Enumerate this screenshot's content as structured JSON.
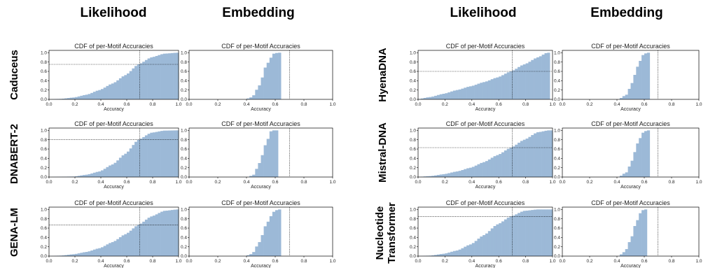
{
  "column_titles": [
    "Likelihood",
    "Embedding",
    "Likelihood",
    "Embedding"
  ],
  "row_labels": {
    "caduceus": "Caduceus",
    "dnabert2": "DNABERT-2",
    "genalm": "GENA-LM",
    "hyenadna": "HyenaDNA",
    "mistraldna": "Mistral-DNA",
    "nt_line1": "Nucleotide",
    "nt_line2": "Transformer"
  },
  "colors": {
    "bars": "#9cb9d7",
    "axis": "#000000"
  },
  "chart_data": [
    {
      "id": "caduceus-likelihood",
      "type": "bar",
      "title": "CDF of per-Motif Accuracies",
      "xlabel": "Accuracy",
      "xlim": [
        0,
        1
      ],
      "ylim": [
        0,
        1.05
      ],
      "xticks": [
        "0.0",
        "0.2",
        "0.4",
        "0.6",
        "0.8",
        "1.0"
      ],
      "yticks": [
        "0.0",
        "0.2",
        "0.4",
        "0.6",
        "0.8",
        "1.0"
      ],
      "threshold_x": 0.7,
      "threshold_y": 0.75,
      "cdf_knots": [
        [
          0,
          0
        ],
        [
          0.1,
          0.01
        ],
        [
          0.2,
          0.04
        ],
        [
          0.3,
          0.1
        ],
        [
          0.4,
          0.2
        ],
        [
          0.5,
          0.34
        ],
        [
          0.6,
          0.52
        ],
        [
          0.7,
          0.75
        ],
        [
          0.8,
          0.9
        ],
        [
          0.9,
          0.98
        ],
        [
          1.0,
          1.0
        ]
      ]
    },
    {
      "id": "caduceus-embedding",
      "type": "bar",
      "title": "CDF of per-Motif Accuracies",
      "xlabel": "Accuracy",
      "xlim": [
        0,
        1
      ],
      "ylim": [
        0,
        1.05
      ],
      "xticks": [
        "0.0",
        "0.2",
        "0.4",
        "0.6",
        "0.8",
        "1.0"
      ],
      "yticks": [
        "0.0",
        "0.2",
        "0.4",
        "0.6",
        "0.8",
        "1.0"
      ],
      "threshold_x": 0.7,
      "threshold_y": null,
      "cdf_knots": [
        [
          0.4,
          0
        ],
        [
          0.45,
          0.05
        ],
        [
          0.5,
          0.3
        ],
        [
          0.55,
          0.75
        ],
        [
          0.6,
          0.98
        ],
        [
          0.63,
          1.0
        ]
      ]
    },
    {
      "id": "hyenadna-likelihood",
      "type": "bar",
      "title": "CDF of per-Motif Accuracies",
      "xlabel": "Accuracy",
      "xlim": [
        0,
        1
      ],
      "ylim": [
        0,
        1.05
      ],
      "xticks": [
        "0.0",
        "0.2",
        "0.4",
        "0.6",
        "0.8",
        "1.0"
      ],
      "yticks": [
        "0.0",
        "0.2",
        "0.4",
        "0.6",
        "0.8",
        "1.0"
      ],
      "threshold_x": 0.7,
      "threshold_y": 0.6,
      "cdf_knots": [
        [
          0,
          0
        ],
        [
          0.1,
          0.05
        ],
        [
          0.2,
          0.12
        ],
        [
          0.3,
          0.2
        ],
        [
          0.4,
          0.28
        ],
        [
          0.5,
          0.37
        ],
        [
          0.6,
          0.47
        ],
        [
          0.7,
          0.6
        ],
        [
          0.8,
          0.75
        ],
        [
          0.9,
          0.9
        ],
        [
          0.97,
          1.0
        ]
      ]
    },
    {
      "id": "hyenadna-embedding",
      "type": "bar",
      "title": "CDF of per-Motif Accuracies",
      "xlabel": "Accuracy",
      "xlim": [
        0,
        1
      ],
      "ylim": [
        0,
        1.05
      ],
      "xticks": [
        "0.0",
        "0.2",
        "0.4",
        "0.6",
        "0.8",
        "1.0"
      ],
      "yticks": [
        "0.0",
        "0.2",
        "0.4",
        "0.6",
        "0.8",
        "1.0"
      ],
      "threshold_x": 0.7,
      "threshold_y": null,
      "cdf_knots": [
        [
          0.42,
          0
        ],
        [
          0.48,
          0.1
        ],
        [
          0.52,
          0.35
        ],
        [
          0.56,
          0.7
        ],
        [
          0.6,
          0.95
        ],
        [
          0.63,
          1.0
        ]
      ]
    },
    {
      "id": "dnabert2-likelihood",
      "type": "bar",
      "title": "CDF of per-Motif Accuracies",
      "xlabel": "Accuracy",
      "xlim": [
        0,
        1
      ],
      "ylim": [
        0,
        1.05
      ],
      "xticks": [
        "0.0",
        "0.2",
        "0.4",
        "0.6",
        "0.8",
        "1.0"
      ],
      "yticks": [
        "0.0",
        "0.2",
        "0.4",
        "0.6",
        "0.8",
        "1.0"
      ],
      "threshold_x": 0.7,
      "threshold_y": 0.8,
      "cdf_knots": [
        [
          0,
          0
        ],
        [
          0.2,
          0.01
        ],
        [
          0.3,
          0.05
        ],
        [
          0.4,
          0.12
        ],
        [
          0.5,
          0.27
        ],
        [
          0.6,
          0.5
        ],
        [
          0.7,
          0.8
        ],
        [
          0.8,
          0.95
        ],
        [
          0.9,
          0.995
        ],
        [
          1.0,
          1.0
        ]
      ]
    },
    {
      "id": "dnabert2-embedding",
      "type": "bar",
      "title": "CDF of per-Motif Accuracies",
      "xlabel": "Accuracy",
      "xlim": [
        0,
        1
      ],
      "ylim": [
        0,
        1.05
      ],
      "xticks": [
        "0.0",
        "0.2",
        "0.4",
        "0.6",
        "0.8",
        "1.0"
      ],
      "yticks": [
        "0.0",
        "0.2",
        "0.4",
        "0.6",
        "0.8",
        "1.0"
      ],
      "threshold_x": 0.7,
      "threshold_y": null,
      "cdf_knots": [
        [
          0.42,
          0
        ],
        [
          0.46,
          0.05
        ],
        [
          0.5,
          0.3
        ],
        [
          0.55,
          0.75
        ],
        [
          0.58,
          0.98
        ],
        [
          0.6,
          1.0
        ]
      ]
    },
    {
      "id": "mistraldna-likelihood",
      "type": "bar",
      "title": "CDF of per-Motif Accuracies",
      "xlabel": "Accuracy",
      "xlim": [
        0,
        1
      ],
      "ylim": [
        0,
        1.05
      ],
      "xticks": [
        "0.0",
        "0.2",
        "0.4",
        "0.6",
        "0.8",
        "1.0"
      ],
      "yticks": [
        "0.0",
        "0.2",
        "0.4",
        "0.6",
        "0.8",
        "1.0"
      ],
      "threshold_x": 0.7,
      "threshold_y": 0.63,
      "cdf_knots": [
        [
          0,
          0
        ],
        [
          0.1,
          0.02
        ],
        [
          0.2,
          0.06
        ],
        [
          0.3,
          0.12
        ],
        [
          0.4,
          0.2
        ],
        [
          0.5,
          0.32
        ],
        [
          0.6,
          0.47
        ],
        [
          0.7,
          0.63
        ],
        [
          0.8,
          0.8
        ],
        [
          0.9,
          0.96
        ],
        [
          0.98,
          1.0
        ]
      ]
    },
    {
      "id": "mistraldna-embedding",
      "type": "bar",
      "title": "CDF of per-Motif Accuracies",
      "xlabel": "Accuracy",
      "xlim": [
        0,
        1
      ],
      "ylim": [
        0,
        1.05
      ],
      "xticks": [
        "0.0",
        "0.2",
        "0.4",
        "0.6",
        "0.8",
        "1.0"
      ],
      "yticks": [
        "0.0",
        "0.2",
        "0.4",
        "0.6",
        "0.8",
        "1.0"
      ],
      "threshold_x": 0.7,
      "threshold_y": null,
      "cdf_knots": [
        [
          0.42,
          0
        ],
        [
          0.48,
          0.1
        ],
        [
          0.52,
          0.35
        ],
        [
          0.56,
          0.72
        ],
        [
          0.6,
          0.95
        ],
        [
          0.63,
          1.0
        ]
      ]
    },
    {
      "id": "genalm-likelihood",
      "type": "bar",
      "title": "CDF of per-Motif Accuracies",
      "xlabel": "Accuracy",
      "xlim": [
        0,
        1
      ],
      "ylim": [
        0,
        1.05
      ],
      "xticks": [
        "0.0",
        "0.2",
        "0.4",
        "0.6",
        "0.8",
        "1.0"
      ],
      "yticks": [
        "0.0",
        "0.2",
        "0.4",
        "0.6",
        "0.8",
        "1.0"
      ],
      "threshold_x": 0.7,
      "threshold_y": 0.67,
      "cdf_knots": [
        [
          0,
          0
        ],
        [
          0.1,
          0.01
        ],
        [
          0.2,
          0.04
        ],
        [
          0.3,
          0.09
        ],
        [
          0.4,
          0.17
        ],
        [
          0.5,
          0.3
        ],
        [
          0.6,
          0.47
        ],
        [
          0.7,
          0.67
        ],
        [
          0.8,
          0.85
        ],
        [
          0.9,
          0.97
        ],
        [
          1.0,
          1.0
        ]
      ]
    },
    {
      "id": "genalm-embedding",
      "type": "bar",
      "title": "CDF of per-Motif Accuracies",
      "xlabel": "Accuracy",
      "xlim": [
        0,
        1
      ],
      "ylim": [
        0,
        1.05
      ],
      "xticks": [
        "0.0",
        "0.2",
        "0.4",
        "0.6",
        "0.8",
        "1.0"
      ],
      "yticks": [
        "0.0",
        "0.2",
        "0.4",
        "0.6",
        "0.8",
        "1.0"
      ],
      "threshold_x": 0.7,
      "threshold_y": null,
      "cdf_knots": [
        [
          0.4,
          0
        ],
        [
          0.45,
          0.05
        ],
        [
          0.5,
          0.3
        ],
        [
          0.55,
          0.7
        ],
        [
          0.6,
          0.95
        ],
        [
          0.63,
          1.0
        ]
      ]
    },
    {
      "id": "nt-likelihood",
      "type": "bar",
      "title": "CDF of per-Motif Accuracies",
      "xlabel": "Accuracy",
      "xlim": [
        0,
        1
      ],
      "ylim": [
        0,
        1.05
      ],
      "xticks": [
        "0.0",
        "0.2",
        "0.4",
        "0.6",
        "0.8",
        "1.0"
      ],
      "yticks": [
        "0.0",
        "0.2",
        "0.4",
        "0.6",
        "0.8",
        "1.0"
      ],
      "threshold_x": 0.7,
      "threshold_y": 0.85,
      "cdf_knots": [
        [
          0,
          0
        ],
        [
          0.1,
          0.01
        ],
        [
          0.2,
          0.05
        ],
        [
          0.3,
          0.12
        ],
        [
          0.4,
          0.25
        ],
        [
          0.5,
          0.45
        ],
        [
          0.6,
          0.68
        ],
        [
          0.7,
          0.85
        ],
        [
          0.8,
          0.97
        ],
        [
          0.9,
          1.0
        ],
        [
          1.0,
          1.0
        ]
      ]
    },
    {
      "id": "nt-embedding",
      "type": "bar",
      "title": "CDF of per-Motif Accuracies",
      "xlabel": "Accuracy",
      "xlim": [
        0,
        1
      ],
      "ylim": [
        0,
        1.05
      ],
      "xticks": [
        "0.0",
        "0.2",
        "0.4",
        "0.6",
        "0.8",
        "1.0"
      ],
      "yticks": [
        "0.0",
        "0.2",
        "0.4",
        "0.6",
        "0.8",
        "1.0"
      ],
      "threshold_x": 0.7,
      "threshold_y": null,
      "cdf_knots": [
        [
          0.42,
          0
        ],
        [
          0.47,
          0.1
        ],
        [
          0.51,
          0.35
        ],
        [
          0.55,
          0.72
        ],
        [
          0.59,
          0.97
        ],
        [
          0.61,
          1.0
        ]
      ]
    }
  ]
}
